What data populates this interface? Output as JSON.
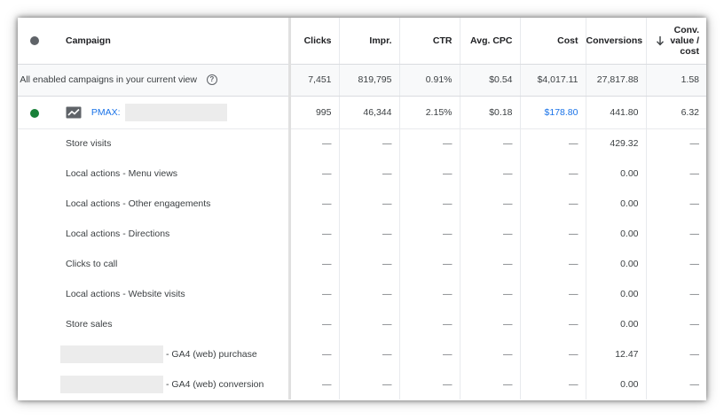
{
  "columns": {
    "campaign": "Campaign",
    "clicks": "Clicks",
    "impr": "Impr.",
    "ctr": "CTR",
    "avg_cpc": "Avg. CPC",
    "cost": "Cost",
    "conversions": "Conversions",
    "conv_value_line1": "Conv.",
    "conv_value_line2": "value /",
    "conv_value_line3": "cost"
  },
  "total_row": {
    "label": "tal: All enabled campaigns in your current view",
    "help_icon": "?",
    "clicks": "7,451",
    "impr": "819,795",
    "ctr": "0.91%",
    "avg_cpc": "$0.54",
    "cost": "$4,017.11",
    "conversions": "27,817.88",
    "conv_value_cost": "1.58"
  },
  "campaign_row": {
    "name": "PMAX:",
    "clicks": "995",
    "impr": "46,344",
    "ctr": "2.15%",
    "avg_cpc": "$0.18",
    "cost": "$178.80",
    "conversions": "441.80",
    "conv_value_cost": "6.32"
  },
  "dash": "—",
  "sub_rows": [
    {
      "label": "Store visits",
      "conversions": "429.32"
    },
    {
      "label": "Local actions - Menu views",
      "conversions": "0.00"
    },
    {
      "label": "Local actions - Other engagements",
      "conversions": "0.00"
    },
    {
      "label": "Local actions - Directions",
      "conversions": "0.00"
    },
    {
      "label": "Clicks to call",
      "conversions": "0.00"
    },
    {
      "label": "Local actions - Website visits",
      "conversions": "0.00"
    },
    {
      "label": "Store sales",
      "conversions": "0.00"
    },
    {
      "label": "- GA4 (web) purchase",
      "conversions": "12.47"
    },
    {
      "label": "- GA4 (web) conversion",
      "conversions": "0.00"
    }
  ],
  "colors": {
    "link": "#1a73e8",
    "status_enabled": "#188038",
    "status_header": "#5f6368"
  },
  "icons": {
    "sort": "arrow-down-icon",
    "campaign_type": "performance-max-icon",
    "help": "help-circle-icon"
  }
}
